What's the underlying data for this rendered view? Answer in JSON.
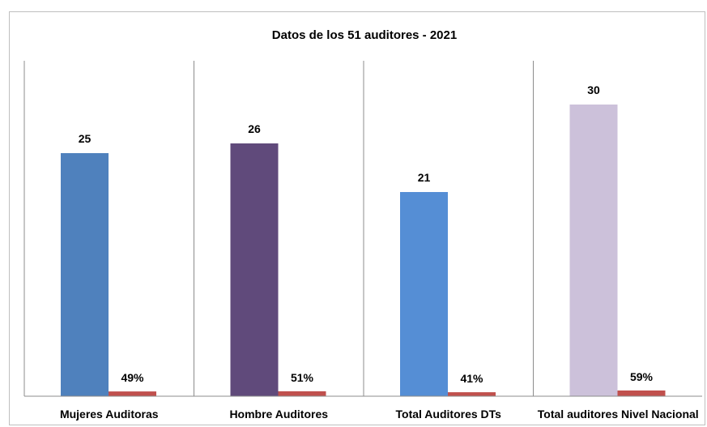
{
  "chart_data": {
    "type": "bar",
    "title": "Datos de los 51 auditores - 2021",
    "xlabel": "",
    "ylabel": "",
    "ylim": [
      0,
      35
    ],
    "grid": false,
    "legend": "none",
    "categories": [
      "Mujeres Auditoras",
      "Hombre Auditores",
      "Total Auditores DTs",
      "Total auditores Nivel Nacional"
    ],
    "series": [
      {
        "values": [
          25,
          26,
          21,
          30
        ],
        "labels": [
          "25",
          "26",
          "21",
          "30"
        ],
        "colors": [
          "#4f81bd",
          "#604a7b",
          "#558ed5",
          "#ccc1da"
        ]
      },
      {
        "values": [
          0.49,
          0.51,
          0.41,
          0.59
        ],
        "labels": [
          "49%",
          "51%",
          "41%",
          "59%"
        ],
        "colors": [
          "#c0504d",
          "#c0504d",
          "#c0504d",
          "#c0504d"
        ]
      }
    ]
  }
}
